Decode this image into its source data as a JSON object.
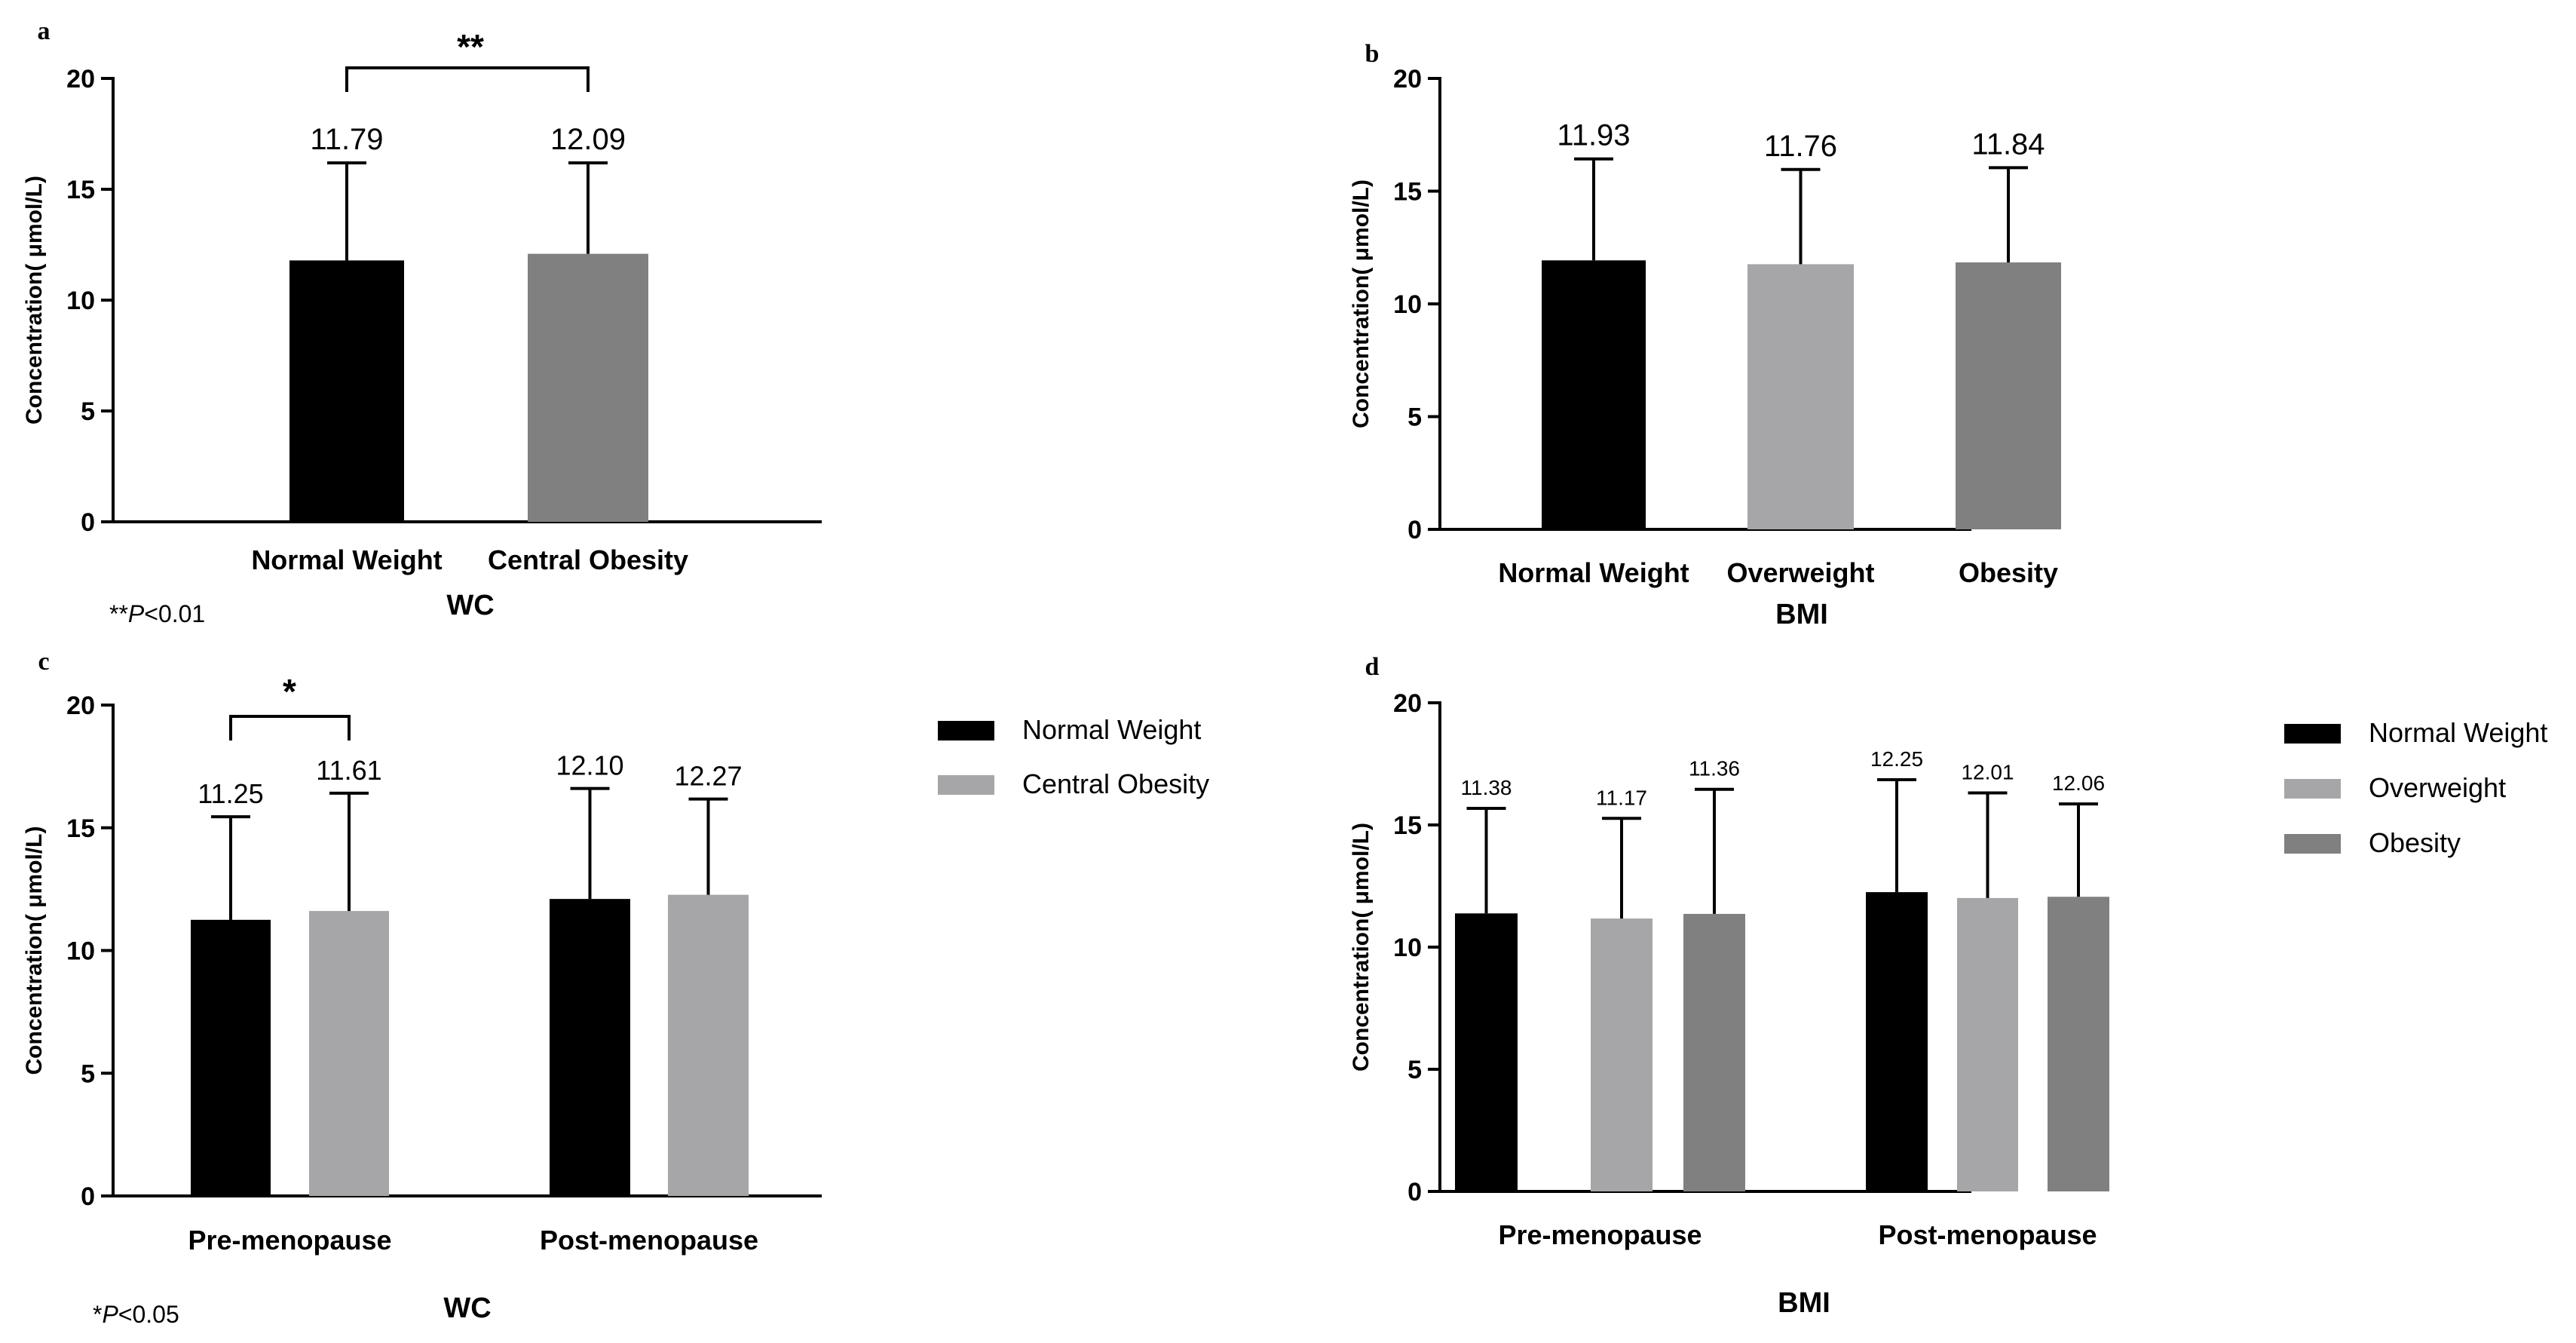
{
  "chart_data": [
    {
      "panel": "a",
      "type": "bar",
      "xlabel": "WC",
      "ylabel": "Concentration( μmol/L)",
      "ylim": [
        0,
        20
      ],
      "yticks": [
        0,
        5,
        10,
        15,
        20
      ],
      "categories": [
        "Normal Weight",
        "Central Obesity"
      ],
      "values": [
        11.79,
        12.09
      ],
      "value_labels": [
        "11.79",
        "12.09"
      ],
      "errors": [
        4.4,
        4.1
      ],
      "colors": [
        "#000000",
        "#808080"
      ],
      "significance": {
        "from": 0,
        "to": 1,
        "label": "**"
      },
      "footnote": {
        "stars": "**",
        "p": "P",
        "rest": "<0.01"
      }
    },
    {
      "panel": "b",
      "type": "bar",
      "xlabel": "BMI",
      "ylabel": "Concentration( μmol/L)",
      "ylim": [
        0,
        20
      ],
      "yticks": [
        0,
        5,
        10,
        15,
        20
      ],
      "categories": [
        "Normal Weight",
        "Overweight",
        "Obesity"
      ],
      "values": [
        11.93,
        11.76,
        11.84
      ],
      "value_labels": [
        "11.93",
        "11.76",
        "11.84"
      ],
      "errors": [
        4.5,
        4.2,
        4.2
      ],
      "colors": [
        "#000000",
        "#a6a6a8",
        "#808080"
      ]
    },
    {
      "panel": "c",
      "type": "bar",
      "xlabel": "WC",
      "ylabel": "Concentration( μmol/L)",
      "ylim": [
        0,
        20
      ],
      "yticks": [
        0,
        5,
        10,
        15,
        20
      ],
      "categories": [
        "Pre-menopause",
        "Post-menopause"
      ],
      "series": [
        {
          "name": "Normal Weight",
          "values": [
            11.25,
            12.1
          ],
          "value_labels": [
            "11.25",
            "12.10"
          ],
          "errors": [
            4.2,
            4.5
          ],
          "color": "#000000"
        },
        {
          "name": "Central Obesity",
          "values": [
            11.61,
            12.27
          ],
          "value_labels": [
            "11.61",
            "12.27"
          ],
          "errors": [
            4.8,
            3.9
          ],
          "color": "#a6a6a8"
        }
      ],
      "significance": {
        "category": 0,
        "from": 0,
        "to": 1,
        "label": "*"
      },
      "legend": "right",
      "footnote": {
        "stars": "*",
        "p": "P",
        "rest": "<0.05"
      }
    },
    {
      "panel": "d",
      "type": "bar",
      "xlabel": "BMI",
      "ylabel": "Concentration( μmol/L)",
      "ylim": [
        0,
        20
      ],
      "yticks": [
        0,
        5,
        10,
        15,
        20
      ],
      "categories": [
        "Pre-menopause",
        "Post-menopause"
      ],
      "series": [
        {
          "name": "Normal Weight",
          "values": [
            11.38,
            12.25
          ],
          "value_labels": [
            "11.38",
            "12.25"
          ],
          "errors": [
            4.3,
            4.6
          ],
          "color": "#000000"
        },
        {
          "name": "Overweight",
          "values": [
            11.17,
            12.01
          ],
          "value_labels": [
            "11.17",
            "12.01"
          ],
          "errors": [
            4.1,
            4.3
          ],
          "color": "#a6a6a8"
        },
        {
          "name": "Obesity",
          "values": [
            11.36,
            12.06
          ],
          "value_labels": [
            "11.36",
            "12.06"
          ],
          "errors": [
            5.1,
            3.8
          ],
          "color": "#808080"
        }
      ],
      "legend": "right"
    }
  ]
}
